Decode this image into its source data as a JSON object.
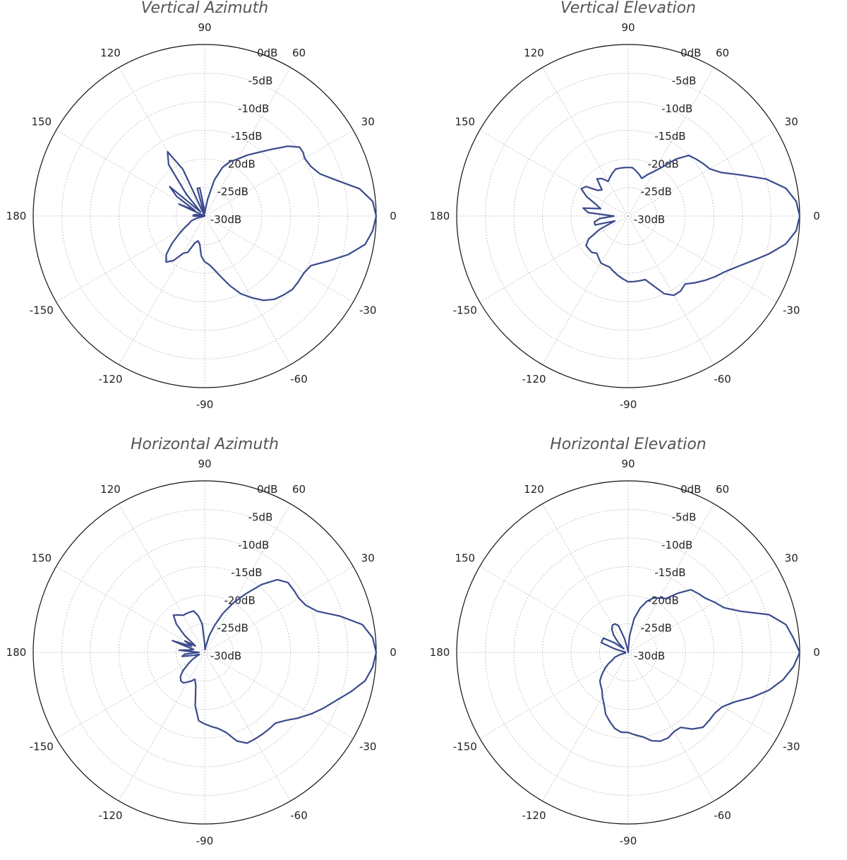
{
  "style": {
    "line_color": "#3a4a8c",
    "grid_color": "#b8b8b8",
    "title_color": "#555555"
  },
  "chart_data": [
    {
      "type": "polar-line",
      "title": "Vertical Azimuth",
      "angle_ticks": [
        "0",
        "30",
        "60",
        "90",
        "120",
        "150",
        "180",
        "-150",
        "-120",
        "-90",
        "-60",
        "-30"
      ],
      "radial_ticks": [
        "0dB",
        "-5dB",
        "-10dB",
        "-15dB",
        "-20dB",
        "-25dB",
        "-30dB"
      ],
      "rlim": [
        -30,
        0
      ],
      "grid": true,
      "series": [
        {
          "angles_deg": [
            0,
            5,
            10,
            15,
            20,
            25,
            30,
            33,
            36,
            40,
            45,
            50,
            55,
            60,
            65,
            70,
            75,
            80,
            85,
            90,
            95,
            100,
            105,
            110,
            115,
            120,
            125,
            130,
            135,
            140,
            145,
            150,
            155,
            160,
            165,
            170,
            175,
            180,
            185,
            190,
            195,
            200,
            205,
            210,
            215,
            220,
            225,
            230,
            235,
            240,
            245,
            250,
            255,
            260,
            265,
            270,
            275,
            280,
            285,
            290,
            295,
            300,
            305,
            310,
            315,
            320,
            325,
            330,
            335,
            340,
            345,
            350,
            355
          ],
          "gain_db": [
            0,
            -0.5,
            -2.5,
            -6,
            -8.5,
            -9.5,
            -9.8,
            -9.5,
            -9.5,
            -11,
            -13.5,
            -15.5,
            -17,
            -18.5,
            -19.5,
            -21,
            -23.5,
            -27,
            -29,
            -29.5,
            -28.5,
            -25,
            -25,
            -30,
            -21,
            -17,
            -19,
            -25,
            -29,
            -22,
            -24,
            -28,
            -25,
            -30,
            -30,
            -28.5,
            -28,
            -28,
            -30,
            -30,
            -28.5,
            -27.5,
            -27,
            -26,
            -24.5,
            -22.5,
            -20.5,
            -19.5,
            -20.5,
            -22.5,
            -23,
            -25,
            -25.5,
            -25,
            -23,
            -22,
            -21.5,
            -20.5,
            -19,
            -17,
            -15,
            -13.5,
            -12,
            -11,
            -10.5,
            -10,
            -10,
            -10,
            -9.5,
            -7,
            -4,
            -1.5,
            -0.5
          ]
        }
      ]
    },
    {
      "type": "polar-line",
      "title": "Vertical Elevation",
      "angle_ticks": [
        "0",
        "30",
        "60",
        "90",
        "120",
        "150",
        "180",
        "-150",
        "-120",
        "-90",
        "-60",
        "-30"
      ],
      "radial_ticks": [
        "0dB",
        "-5dB",
        "-10dB",
        "-15dB",
        "-20dB",
        "-25dB",
        "-30dB"
      ],
      "rlim": [
        -30,
        0
      ],
      "grid": true,
      "series": [
        {
          "angles_deg": [
            0,
            5,
            10,
            15,
            20,
            25,
            30,
            35,
            40,
            45,
            50,
            55,
            60,
            65,
            70,
            75,
            80,
            85,
            90,
            95,
            100,
            105,
            110,
            115,
            120,
            125,
            130,
            135,
            140,
            145,
            150,
            155,
            160,
            165,
            170,
            175,
            180,
            185,
            190,
            195,
            200,
            205,
            210,
            215,
            220,
            225,
            230,
            235,
            240,
            245,
            250,
            255,
            260,
            265,
            270,
            275,
            280,
            285,
            290,
            295,
            300,
            305,
            310,
            315,
            320,
            325,
            330,
            335,
            340,
            345,
            350,
            355
          ],
          "gain_db": [
            0,
            -0.5,
            -2,
            -5,
            -9,
            -12,
            -13.5,
            -14,
            -14.5,
            -15,
            -17,
            -19.5,
            -21,
            -22,
            -23,
            -22.5,
            -22,
            -21.5,
            -21.5,
            -21.5,
            -21.5,
            -21.5,
            -22,
            -22.5,
            -23,
            -22,
            -21.5,
            -23.5,
            -23,
            -21,
            -20.5,
            -22,
            -24,
            -25,
            -22,
            -23,
            -27.5,
            -25,
            -24,
            -24,
            -27.5,
            -24.5,
            -22,
            -21,
            -21,
            -21,
            -21.5,
            -21,
            -20.5,
            -20.5,
            -20.5,
            -20,
            -19.5,
            -19,
            -18.5,
            -18.5,
            -18.5,
            -18.5,
            -17,
            -15,
            -14,
            -14,
            -14.5,
            -13.5,
            -12.5,
            -11.5,
            -10.5,
            -9,
            -7,
            -4.5,
            -2,
            -0.5
          ]
        }
      ]
    },
    {
      "type": "polar-line",
      "title": "Horizontal Azimuth",
      "angle_ticks": [
        "0",
        "30",
        "60",
        "90",
        "120",
        "150",
        "180",
        "-150",
        "-120",
        "-90",
        "-60",
        "-30"
      ],
      "radial_ticks": [
        "0dB",
        "-5dB",
        "-10dB",
        "-15dB",
        "-20dB",
        "-25dB",
        "-30dB"
      ],
      "rlim": [
        -30,
        0
      ],
      "grid": true,
      "series": [
        {
          "angles_deg": [
            0,
            5,
            10,
            15,
            20,
            25,
            30,
            35,
            40,
            45,
            50,
            55,
            60,
            65,
            70,
            75,
            80,
            85,
            90,
            95,
            100,
            105,
            110,
            115,
            120,
            125,
            130,
            135,
            140,
            145,
            150,
            155,
            160,
            165,
            170,
            175,
            180,
            185,
            190,
            195,
            200,
            205,
            210,
            215,
            220,
            225,
            230,
            235,
            240,
            245,
            250,
            255,
            260,
            265,
            270,
            275,
            280,
            285,
            290,
            295,
            300,
            305,
            310,
            315,
            320,
            325,
            330,
            335,
            340,
            345,
            350,
            355
          ],
          "gain_db": [
            0,
            -0.5,
            -2,
            -5.5,
            -9,
            -10.5,
            -11,
            -11,
            -11,
            -12,
            -14.5,
            -17.5,
            -20,
            -22.5,
            -25,
            -27,
            -29,
            -29.5,
            -28.5,
            -25,
            -23.5,
            -22.5,
            -22.5,
            -22.5,
            -22.5,
            -22,
            -21.5,
            -23,
            -25.5,
            -28,
            -26,
            -27.5,
            -24,
            -28,
            -27.5,
            -25.5,
            -29,
            -26.5,
            -26,
            -28,
            -29,
            -28.5,
            -27.5,
            -26.5,
            -25,
            -24,
            -23.5,
            -23.5,
            -24,
            -24.5,
            -25,
            -24,
            -20.5,
            -18,
            -17.5,
            -17,
            -16.5,
            -15.5,
            -13.5,
            -12.5,
            -12.5,
            -12.5,
            -12.5,
            -12.5,
            -11.5,
            -10,
            -8.5,
            -7,
            -5.5,
            -3.5,
            -1.5,
            -0.5
          ]
        }
      ]
    },
    {
      "type": "polar-line",
      "title": "Horizontal Elevation",
      "angle_ticks": [
        "0",
        "30",
        "60",
        "90",
        "120",
        "150",
        "180",
        "-150",
        "-120",
        "-90",
        "-60",
        "-30"
      ],
      "radial_ticks": [
        "0dB",
        "-5dB",
        "-10dB",
        "-15dB",
        "-20dB",
        "-25dB",
        "-30dB"
      ],
      "rlim": [
        -30,
        0
      ],
      "grid": true,
      "series": [
        {
          "angles_deg": [
            0,
            5,
            10,
            15,
            20,
            25,
            30,
            35,
            40,
            45,
            50,
            55,
            60,
            65,
            70,
            75,
            80,
            85,
            90,
            95,
            100,
            105,
            110,
            115,
            120,
            125,
            130,
            135,
            140,
            145,
            150,
            155,
            160,
            165,
            170,
            175,
            180,
            185,
            190,
            195,
            200,
            205,
            210,
            215,
            220,
            225,
            230,
            235,
            240,
            245,
            250,
            255,
            260,
            265,
            270,
            275,
            280,
            285,
            290,
            295,
            300,
            305,
            310,
            315,
            320,
            325,
            330,
            335,
            340,
            345,
            350,
            355
          ],
          "gain_db": [
            0,
            -1,
            -2,
            -4.5,
            -9,
            -11.5,
            -12.5,
            -13.5,
            -14,
            -14.5,
            -16.5,
            -18.5,
            -19,
            -19.5,
            -20.5,
            -22,
            -24,
            -27,
            -29.5,
            -30,
            -29.5,
            -27.5,
            -25,
            -24.5,
            -24.5,
            -25,
            -26,
            -27.5,
            -29,
            -27,
            -25,
            -25,
            -25,
            -27.5,
            -29,
            -29.5,
            -29.5,
            -29.5,
            -29.5,
            -28.5,
            -27.5,
            -27,
            -26,
            -25,
            -24,
            -23,
            -22.5,
            -22,
            -21,
            -20,
            -18.5,
            -17.5,
            -16.5,
            -16,
            -16,
            -15.5,
            -15,
            -14,
            -13.5,
            -13.5,
            -14,
            -14,
            -12.5,
            -11.5,
            -11.5,
            -11.5,
            -11,
            -9.5,
            -7,
            -4.5,
            -2.5,
            -1
          ]
        }
      ]
    }
  ]
}
